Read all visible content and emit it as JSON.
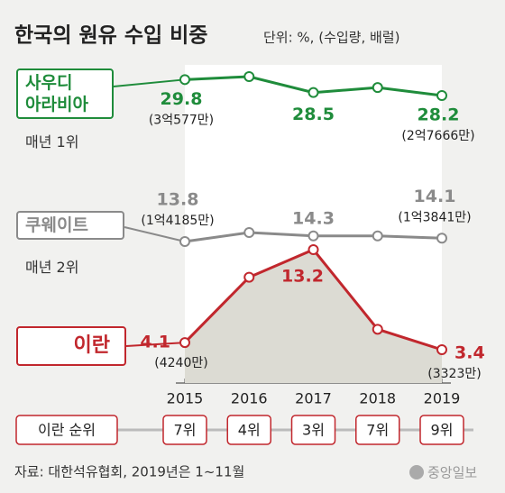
{
  "title": "한국의 원유 수입 비중",
  "chart_data": {
    "type": "line",
    "subtitle": "단위: %, (수입량, 배럴)",
    "categories": [
      "2015",
      "2016",
      "2017",
      "2018",
      "2019"
    ],
    "series": [
      {
        "name": "사우디\n아라비아",
        "rank_note": "매년 1위",
        "color": "#1f8c3b",
        "values": [
          29.8,
          30.1,
          28.5,
          29.0,
          28.2
        ],
        "value_labels": [
          "29.8",
          null,
          "28.5",
          null,
          "28.2"
        ],
        "volumes": [
          "(3억577만)",
          null,
          null,
          null,
          "(2억7666만)"
        ]
      },
      {
        "name": "쿠웨이트",
        "rank_note": "매년 2위",
        "color": "#8a8a8a",
        "values": [
          13.8,
          14.6,
          14.3,
          14.3,
          14.1
        ],
        "value_labels": [
          "13.8",
          null,
          "14.3",
          null,
          "14.1"
        ],
        "volumes": [
          "(1억4185만)",
          null,
          null,
          null,
          "(1억3841만)"
        ]
      },
      {
        "name": "이란",
        "color": "#c1272d",
        "area": true,
        "values": [
          4.1,
          10.5,
          13.2,
          5.4,
          3.4
        ],
        "value_labels": [
          "4.1",
          null,
          "13.2",
          null,
          "3.4"
        ],
        "volumes": [
          "(4240만)",
          null,
          null,
          null,
          "(3323만)"
        ]
      }
    ]
  },
  "iran_rank": {
    "label": "이란 순위",
    "ranks": [
      "7위",
      "4위",
      "3위",
      "7위",
      "9위"
    ]
  },
  "source": "자료: 대한석유협회, 2019년은 1~11월",
  "logo": "중앙일보"
}
